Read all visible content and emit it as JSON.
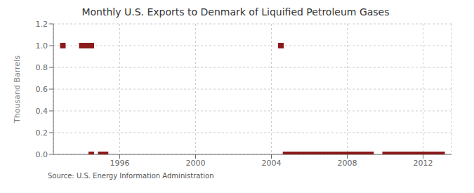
{
  "chart_data": {
    "type": "scatter",
    "title": "Monthly U.S. Exports to Denmark of Liquified Petroleum Gases",
    "ylabel": "Thousand Barrels",
    "annotations": [
      "Source: U.S. Energy Information Administration"
    ],
    "x": [
      1993.0,
      1994.0,
      1994.25,
      1994.5,
      1994.5,
      1995.0,
      1995.25,
      2004.5,
      2004.75,
      2005.0,
      2005.25,
      2005.5,
      2005.75,
      2006.0,
      2006.1,
      2006.2,
      2006.3,
      2006.4,
      2006.5,
      2006.6,
      2006.7,
      2006.8,
      2006.9,
      2007.0,
      2007.1,
      2007.2,
      2007.3,
      2007.4,
      2007.5,
      2007.6,
      2007.7,
      2007.8,
      2007.9,
      2008.0,
      2008.1,
      2008.2,
      2008.25,
      2008.5,
      2008.75,
      2009.0,
      2009.25,
      2010.0,
      2010.1,
      2010.2,
      2010.3,
      2010.5,
      2010.75,
      2011.0,
      2011.1,
      2011.25,
      2011.5,
      2011.75,
      2012.0,
      2012.1,
      2012.25,
      2012.5,
      2012.75,
      2013.0
    ],
    "values": [
      1.0,
      1.0,
      1.0,
      1.0,
      0.0,
      0.0,
      0.0,
      1.0,
      0.0,
      0.0,
      0.0,
      0.0,
      0.0,
      0.0,
      0.0,
      0.0,
      0.0,
      0.0,
      0.0,
      0.0,
      0.0,
      0.0,
      0.0,
      0.0,
      0.0,
      0.0,
      0.0,
      0.0,
      0.0,
      0.0,
      0.0,
      0.0,
      0.0,
      0.0,
      0.0,
      0.0,
      0.0,
      0.0,
      0.0,
      0.0,
      0.0,
      0.0,
      0.0,
      0.0,
      0.0,
      0.0,
      0.0,
      0.0,
      0.0,
      0.0,
      0.0,
      0.0,
      0.0,
      0.0,
      0.0,
      0.0,
      0.0,
      0.0
    ],
    "color": "#8B1A1A",
    "marker": "square",
    "xlim": [
      1992.5,
      2013.5
    ],
    "xticks": [
      1996,
      2000,
      2004,
      2008,
      2012
    ],
    "ylim": [
      0.0,
      1.2
    ],
    "yticks": [
      {
        "value": 0.0,
        "label": "0.0"
      },
      0.2,
      0.4,
      0.6,
      0.8,
      {
        "value": 1.0,
        "label": "1.0"
      },
      1.2
    ],
    "grid": true
  }
}
